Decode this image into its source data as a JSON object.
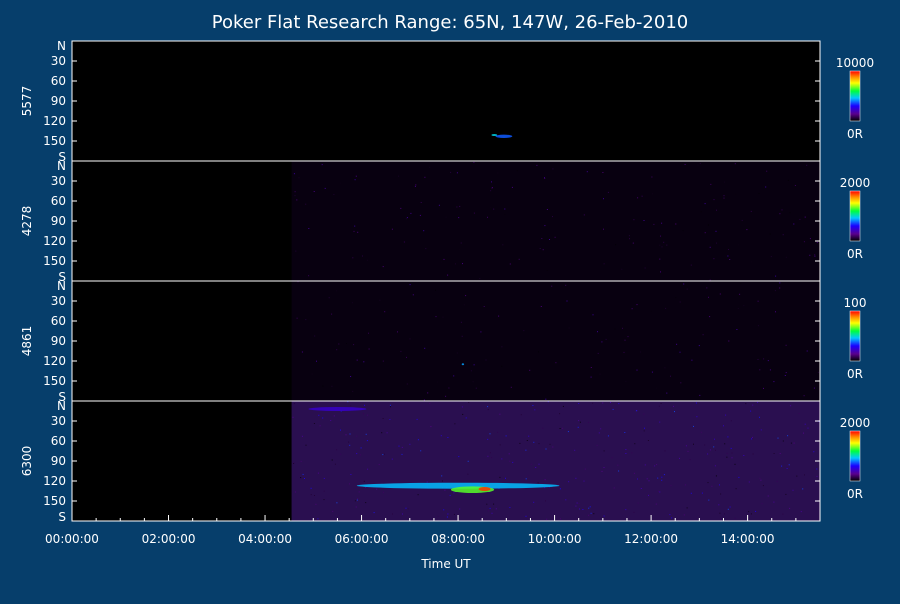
{
  "chart_data": {
    "type": "heatmap",
    "title": "Poker Flat Research Range: 65N, 147W, 26-Feb-2010",
    "xlabel": "Time UT",
    "x_ticks": [
      "00:00:00",
      "02:00:00",
      "04:00:00",
      "06:00:00",
      "08:00:00",
      "10:00:00",
      "12:00:00",
      "14:00:00"
    ],
    "x_range_hours": [
      0,
      15.5
    ],
    "y_ticks": [
      "N",
      "30",
      "60",
      "90",
      "120",
      "150",
      "S"
    ],
    "y_range_deg": [
      0,
      180
    ],
    "colormap": [
      "#000000",
      "#5a008c",
      "#1b00ff",
      "#00c8ff",
      "#00ff3c",
      "#ffff00",
      "#ff8c00",
      "#ff0000"
    ],
    "panels": [
      {
        "name": "5577",
        "cmax_label": "10000",
        "cmin_label": "0R",
        "data_start_hour": null,
        "noise": 0.0,
        "features": [
          {
            "t": 8.95,
            "y": 143,
            "dt": 0.35,
            "dy": 5,
            "v": 0.35
          },
          {
            "t": 8.75,
            "y": 141,
            "dt": 0.12,
            "dy": 3,
            "v": 0.45
          }
        ]
      },
      {
        "name": "4278",
        "cmax_label": "2000",
        "cmin_label": "0R",
        "data_start_hour": 4.55,
        "noise": 0.12,
        "features": []
      },
      {
        "name": "4861",
        "cmax_label": "100",
        "cmin_label": "0R",
        "data_start_hour": 4.55,
        "noise": 0.1,
        "features": [
          {
            "t": 8.1,
            "y": 125,
            "dt": 0.05,
            "dy": 2,
            "v": 0.4
          }
        ]
      },
      {
        "name": "6300",
        "cmax_label": "2000",
        "cmin_label": "0R",
        "data_start_hour": 4.55,
        "noise": 0.25,
        "features": [
          {
            "t": 8.0,
            "y": 127,
            "dt": 4.2,
            "dy": 9,
            "v": 0.42
          },
          {
            "t": 8.3,
            "y": 133,
            "dt": 0.9,
            "dy": 10,
            "v": 0.62
          },
          {
            "t": 8.55,
            "y": 132,
            "dt": 0.25,
            "dy": 6,
            "v": 0.95
          },
          {
            "t": 5.5,
            "y": 12,
            "dt": 1.2,
            "dy": 6,
            "v": 0.22
          }
        ]
      }
    ]
  }
}
